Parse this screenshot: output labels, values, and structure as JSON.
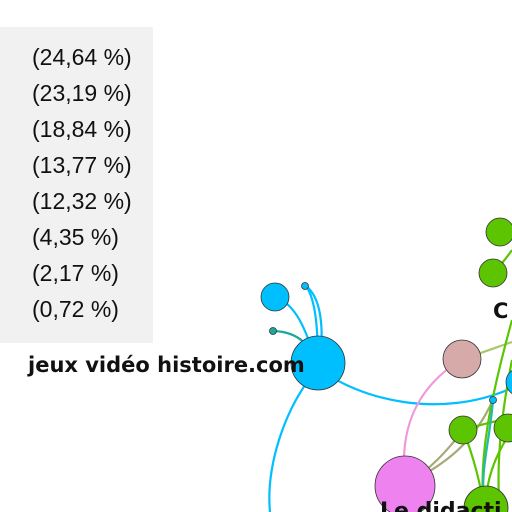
{
  "legend": {
    "percentages": [
      "(24,64 %)",
      "(23,19 %)",
      "(18,84 %)",
      "(13,77 %)",
      "(12,32 %)",
      "(4,35 %)",
      "(2,17 %)",
      "(0,72 %)"
    ]
  },
  "graph": {
    "labels": {
      "jeux": "jeux vidéo histoire.com",
      "c": "C",
      "didactique": "Le didacti"
    }
  },
  "colors": {
    "cyan": "#00bfff",
    "green": "#5cc400",
    "pink": "#ee82ee",
    "rose": "#d7aaaa",
    "teal": "#1aa89a",
    "olive": "#a8a878"
  }
}
